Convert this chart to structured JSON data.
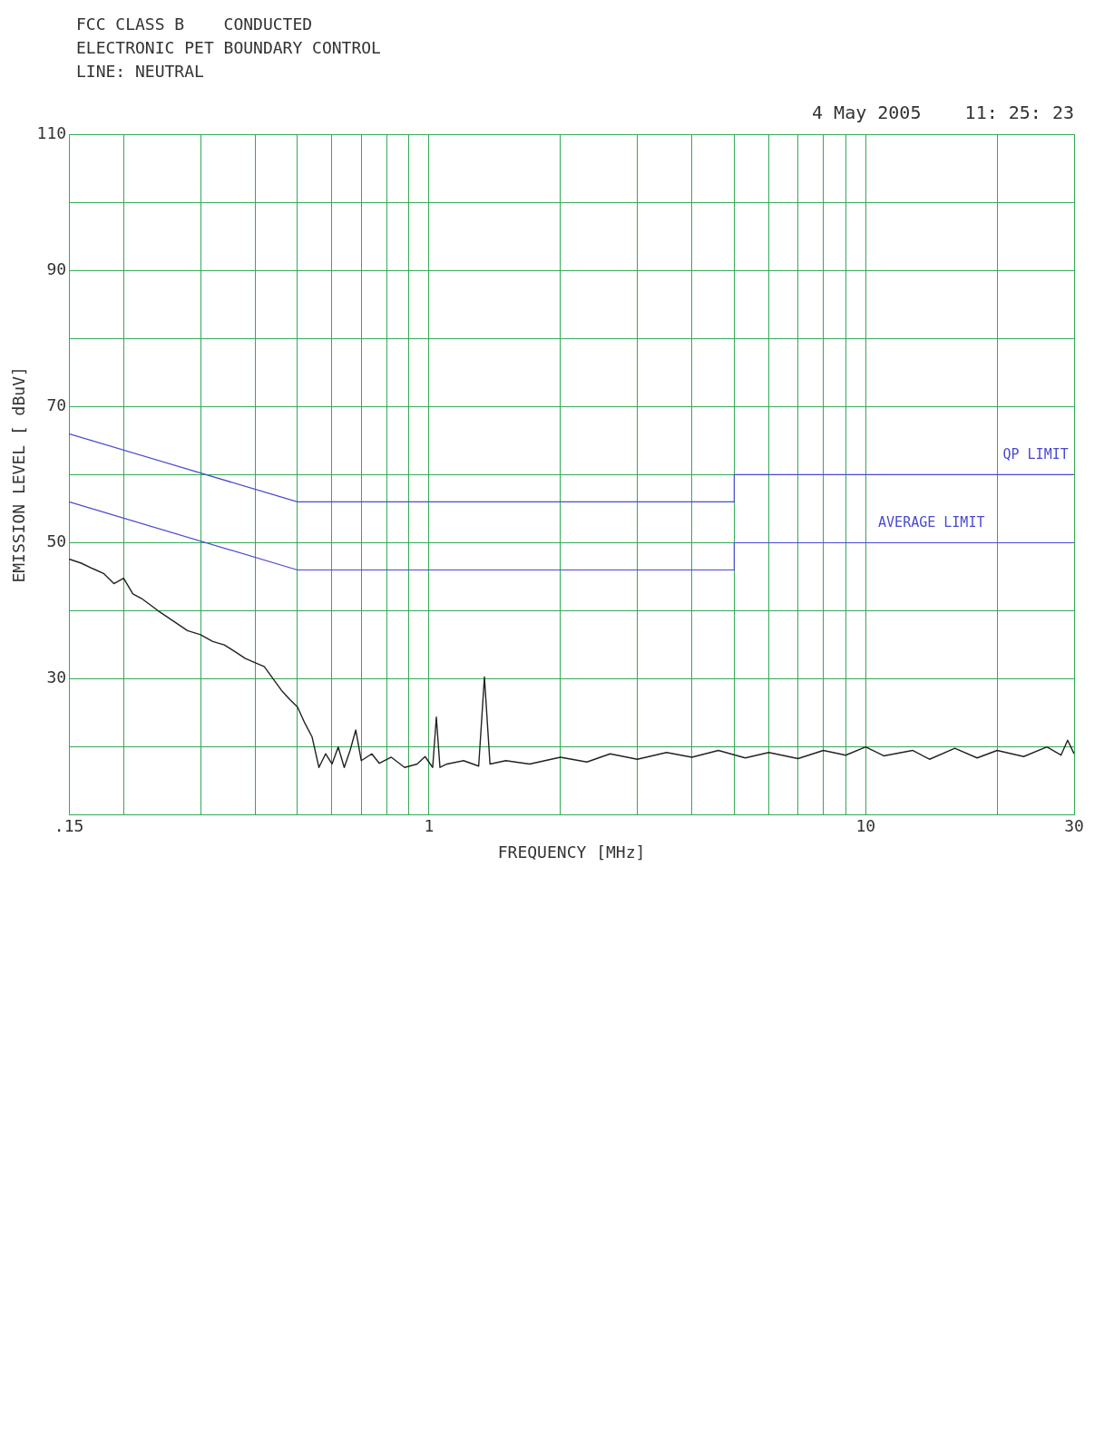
{
  "chart_data": {
    "type": "line",
    "title": "4 May 2005    11: 25: 23",
    "xlabel": "FREQUENCY [MHz]",
    "ylabel": "EMISSION LEVEL [ dBuV]",
    "annotations": [
      "FCC CLASS B    CONDUCTED",
      "ELECTRONIC PET BOUNDARY CONTROL",
      "LINE: NEUTRAL"
    ],
    "series": [
      {
        "x": [
          0.15,
          0.16,
          0.17,
          0.18,
          0.19,
          0.2,
          0.21,
          0.22,
          0.24,
          0.26,
          0.28,
          0.3,
          0.32,
          0.34,
          0.36,
          0.38,
          0.42,
          0.44,
          0.46,
          0.48,
          0.5,
          0.52,
          0.54,
          0.56,
          0.58,
          0.6,
          0.62,
          0.64,
          0.66,
          0.68,
          0.7,
          0.74,
          0.77,
          0.82,
          0.88,
          0.94,
          0.98,
          1.02,
          1.04,
          1.06,
          1.1,
          1.2,
          1.3,
          1.34,
          1.38,
          1.5,
          1.7,
          2,
          2.3,
          2.6,
          3,
          3.5,
          4,
          4.6,
          5.3,
          6,
          7,
          8,
          9,
          10,
          11,
          12.8,
          14,
          16,
          18,
          20,
          23,
          26,
          28,
          29,
          30
        ],
        "color": "#222222",
        "values": [
          47.6,
          47,
          46.2,
          45.5,
          44,
          44.8,
          42.5,
          41.8,
          40,
          38.5,
          37.1,
          36.5,
          35.5,
          35,
          34,
          33,
          31.8,
          30,
          28.3,
          27,
          25.9,
          23.5,
          21.5,
          17,
          19,
          17.5,
          20,
          17,
          19.5,
          22.5,
          18,
          19,
          17.6,
          18.5,
          17,
          17.5,
          18.6,
          17,
          24.4,
          17,
          17.5,
          18,
          17.2,
          30.3,
          17.5,
          18,
          17.5,
          18.5,
          17.8,
          19,
          18.2,
          19.2,
          18.5,
          19.5,
          18.4,
          19.2,
          18.3,
          19.5,
          18.8,
          20,
          18.7,
          19.5,
          18.2,
          19.8,
          18.4,
          19.5,
          18.6,
          20,
          18.8,
          21,
          19
        ]
      },
      {
        "name": "QP LIMIT",
        "x": [
          0.15,
          0.5,
          5,
          5,
          30
        ],
        "color": "#4a4ad0",
        "values": [
          66,
          56,
          56,
          60,
          60
        ]
      },
      {
        "name": "AVERAGE LIMIT",
        "x": [
          0.15,
          0.5,
          5,
          5,
          30
        ],
        "color": "#4a4ad0",
        "values": [
          56,
          46,
          46,
          50,
          50
        ]
      }
    ],
    "xlim": [
      0.15,
      30
    ],
    "xticks": [
      {
        "value": 0.15,
        "label": ".15"
      },
      {
        "value": 0.2,
        "label": null
      },
      {
        "value": 0.3,
        "label": null
      },
      {
        "value": 0.4,
        "label": null
      },
      {
        "value": 0.5,
        "label": null
      },
      {
        "value": 0.6,
        "label": null
      },
      {
        "value": 0.7,
        "label": null
      },
      {
        "value": 0.8,
        "label": null
      },
      {
        "value": 0.9,
        "label": null
      },
      1,
      {
        "value": 2,
        "label": null
      },
      {
        "value": 3,
        "label": null
      },
      {
        "value": 4,
        "label": null
      },
      {
        "value": 5,
        "label": null
      },
      {
        "value": 6,
        "label": null
      },
      {
        "value": 7,
        "label": null
      },
      {
        "value": 8,
        "label": null
      },
      {
        "value": 9,
        "label": null
      },
      10,
      {
        "value": 20,
        "label": null
      },
      30
    ],
    "ylim": [
      10,
      110
    ],
    "yticks": [
      {
        "value": 10,
        "label": null
      },
      {
        "value": 20,
        "label": null
      },
      30,
      {
        "value": 40,
        "label": null
      },
      50,
      {
        "value": 60,
        "label": null
      },
      70,
      {
        "value": 80,
        "label": null
      },
      90,
      {
        "value": 100,
        "label": null
      },
      110
    ],
    "log": "x",
    "grid": true,
    "legend": false,
    "marker": "none",
    "line_style": "solid"
  }
}
